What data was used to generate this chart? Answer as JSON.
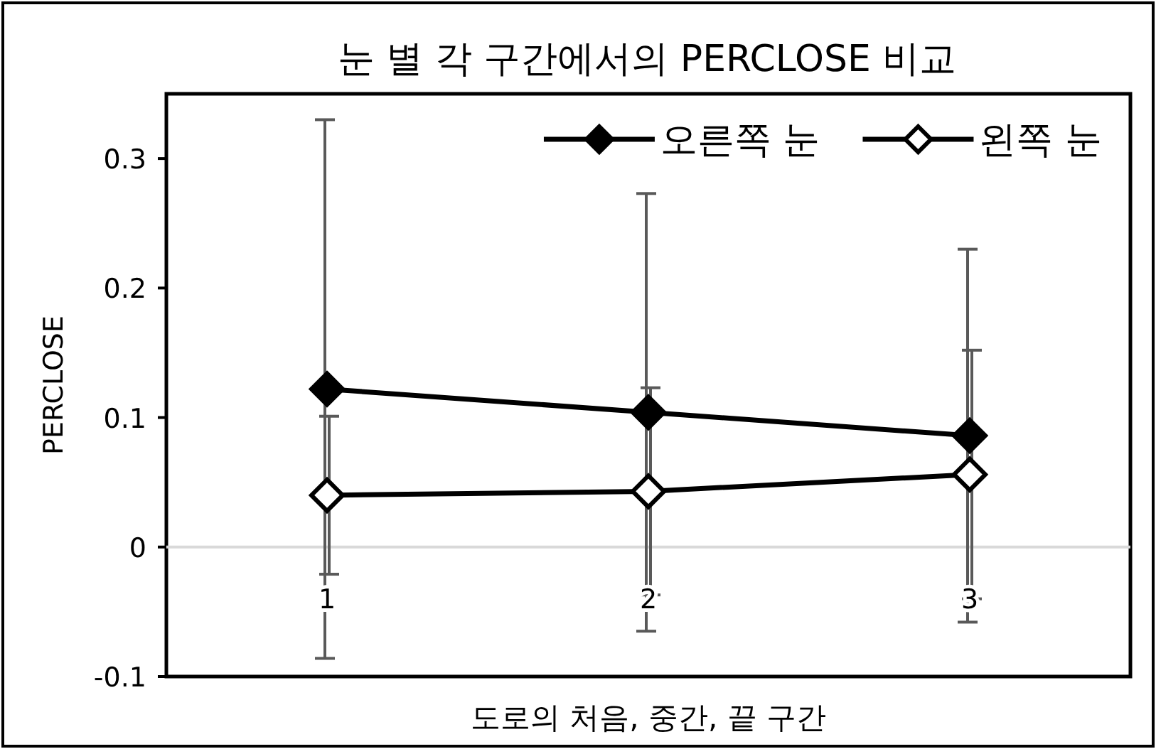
{
  "chart_data": {
    "type": "line",
    "title": "눈 별 각 구간에서의 PERCLOSE 비교",
    "xlabel": "도로의 처음, 중간, 끝 구간",
    "ylabel": "PERCLOSE",
    "categories": [
      "1",
      "2",
      "3"
    ],
    "series": [
      {
        "name": "오른쪽 눈",
        "color": "#000000",
        "values": [
          0.122,
          0.104,
          0.086
        ],
        "errors": [
          0.208,
          0.169,
          0.144
        ]
      },
      {
        "name": "왼쪽 눈",
        "color": "#000000",
        "values": [
          0.04,
          0.043,
          0.056
        ],
        "errors": [
          0.061,
          0.08,
          0.096
        ]
      }
    ],
    "ylim": [
      -0.1,
      0.35
    ],
    "yticks": [
      -0.1,
      0,
      0.1,
      0.2,
      0.3
    ],
    "marker": "diamond",
    "line_style": "solid",
    "legend": "top right"
  }
}
